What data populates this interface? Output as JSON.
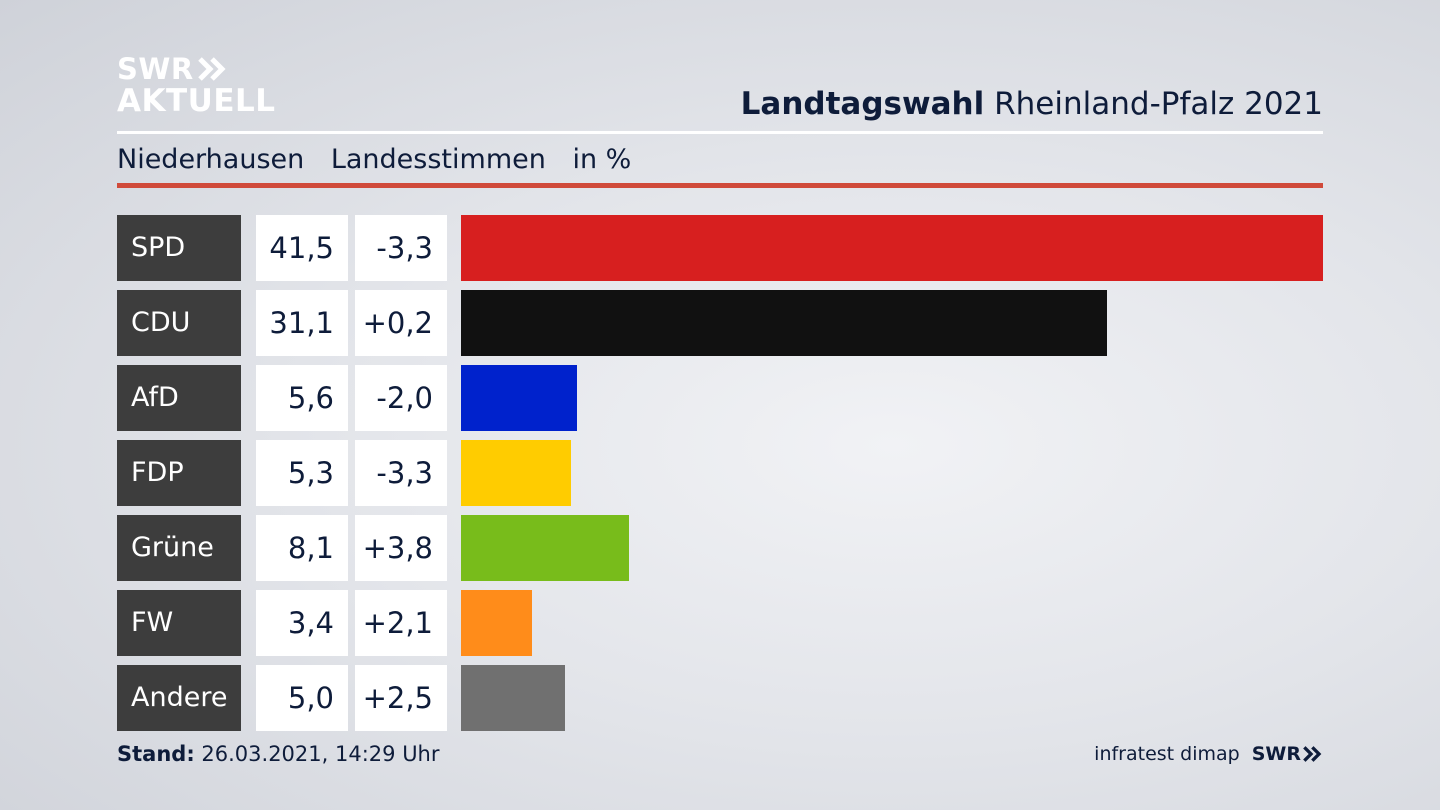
{
  "logo": {
    "line1": "SWR",
    "line2": "AKTUELL"
  },
  "header": {
    "title_bold": "Landtagswahl",
    "title_rest": "Rheinland-Pfalz 2021"
  },
  "subheader": {
    "place": "Niederhausen",
    "vote_type": "Landesstimmen",
    "unit": "in %"
  },
  "footer": {
    "stand_label": "Stand:",
    "stand_value": "26.03.2021, 14:29 Uhr",
    "source": "infratest dimap",
    "brand": "SWR"
  },
  "chart_data": {
    "type": "bar",
    "orientation": "horizontal",
    "title": "Landtagswahl Rheinland-Pfalz 2021",
    "subtitle": "Niederhausen Landesstimmen in %",
    "categories": [
      "SPD",
      "CDU",
      "AfD",
      "FDP",
      "Grüne",
      "FW",
      "Andere"
    ],
    "values": [
      41.5,
      31.1,
      5.6,
      5.3,
      8.1,
      3.4,
      5.0
    ],
    "value_labels": [
      "41,5",
      "31,1",
      "5,6",
      "5,3",
      "8,1",
      "3,4",
      "5,0"
    ],
    "diff_labels": [
      "-3,3",
      "+0,2",
      "-2,0",
      "-3,3",
      "+3,8",
      "+2,1",
      "+2,5"
    ],
    "colors": [
      "#d71f1f",
      "#111111",
      "#0022cc",
      "#ffcc00",
      "#78bc1b",
      "#ff8c1a",
      "#707070"
    ],
    "xlim": [
      0,
      41.5
    ],
    "grid": false,
    "legend": "none"
  }
}
